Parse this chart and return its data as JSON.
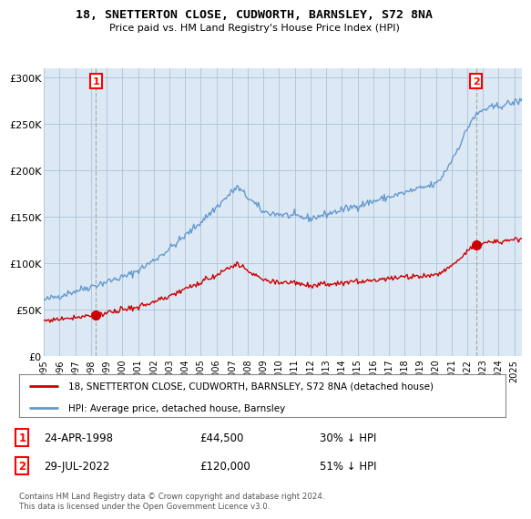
{
  "title": "18, SNETTERTON CLOSE, CUDWORTH, BARNSLEY, S72 8NA",
  "subtitle": "Price paid vs. HM Land Registry's House Price Index (HPI)",
  "sale1_date": "24-APR-1998",
  "sale1_price": 44500,
  "sale1_hpi_pct": "30% ↓ HPI",
  "sale1_year": 1998.31,
  "sale2_date": "29-JUL-2022",
  "sale2_price": 120000,
  "sale2_hpi_pct": "51% ↓ HPI",
  "sale2_year": 2022.57,
  "red_line_label": "18, SNETTERTON CLOSE, CUDWORTH, BARNSLEY, S72 8NA (detached house)",
  "blue_line_label": "HPI: Average price, detached house, Barnsley",
  "footnote": "Contains HM Land Registry data © Crown copyright and database right 2024.\nThis data is licensed under the Open Government Licence v3.0.",
  "ylim": [
    0,
    310000
  ],
  "xlim_start": 1995.0,
  "xlim_end": 2025.5,
  "yticks": [
    0,
    50000,
    100000,
    150000,
    200000,
    250000,
    300000
  ],
  "ytick_labels": [
    "£0",
    "£50K",
    "£100K",
    "£150K",
    "£200K",
    "£250K",
    "£300K"
  ],
  "xticks": [
    1995,
    1996,
    1997,
    1998,
    1999,
    2000,
    2001,
    2002,
    2003,
    2004,
    2005,
    2006,
    2007,
    2008,
    2009,
    2010,
    2011,
    2012,
    2013,
    2014,
    2015,
    2016,
    2017,
    2018,
    2019,
    2020,
    2021,
    2022,
    2023,
    2024,
    2025
  ],
  "background_color": "#ffffff",
  "plot_bg_color": "#dce9f5",
  "grid_color": "#b0c8e0",
  "red_color": "#cc0000",
  "blue_color": "#6699cc",
  "dash_color": "#aaaaaa"
}
